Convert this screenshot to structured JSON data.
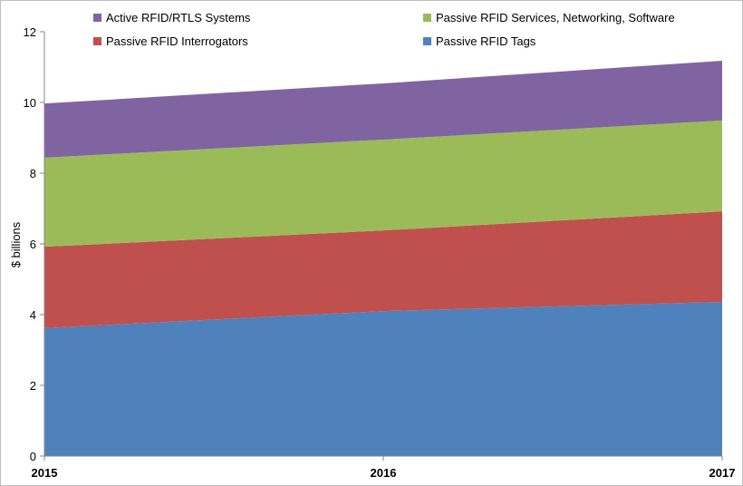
{
  "chart_data": {
    "type": "area",
    "stacked": true,
    "title": "",
    "xlabel": "",
    "ylabel": "$ billions",
    "x": [
      "2015",
      "2016",
      "2017"
    ],
    "ylim": [
      0,
      12
    ],
    "yticks": [
      0,
      2,
      4,
      6,
      8,
      10,
      12
    ],
    "grid": false,
    "legend_position": "top",
    "series": [
      {
        "name": "Passive RFID Tags",
        "color": "#4F81BD",
        "values": [
          3.62,
          4.1,
          4.36
        ]
      },
      {
        "name": "Passive RFID Interrogators",
        "color": "#C0504D",
        "values": [
          2.3,
          2.28,
          2.56
        ]
      },
      {
        "name": "Passive RFID Services, Networking, Software",
        "color": "#9BBB59",
        "values": [
          2.52,
          2.57,
          2.57
        ]
      },
      {
        "name": "Active RFID/RTLS Systems",
        "color": "#8064A2",
        "values": [
          1.53,
          1.59,
          1.69
        ]
      }
    ],
    "legend_order": [
      3,
      2,
      1,
      0
    ]
  }
}
